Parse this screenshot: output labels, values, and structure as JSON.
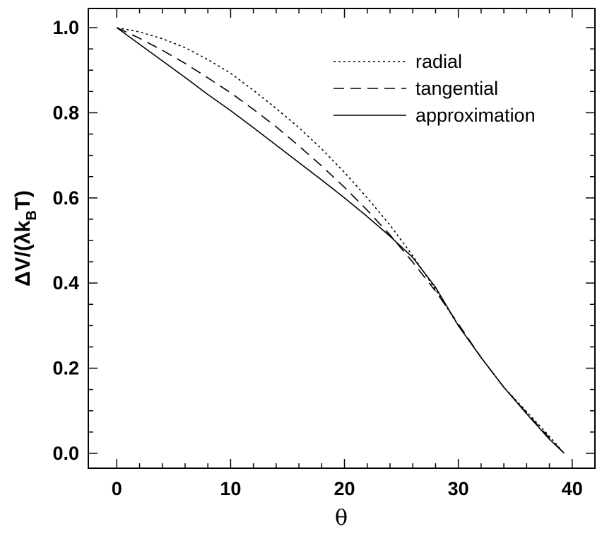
{
  "chart_data": {
    "type": "line",
    "title": "",
    "xlabel": "θ",
    "ylabel": "ΔV/(λk_BT)",
    "xlim": [
      -2.5,
      42
    ],
    "ylim": [
      -0.035,
      1.045
    ],
    "grid": false,
    "legend_position": "top-right",
    "x_ticks": {
      "major": [
        0,
        10,
        20,
        30,
        40
      ],
      "labels": [
        "0",
        "10",
        "20",
        "30",
        "40"
      ],
      "minor_step": 2
    },
    "y_ticks": {
      "major": [
        0.0,
        0.2,
        0.4,
        0.6,
        0.8,
        1.0
      ],
      "labels": [
        "0.0",
        "0.2",
        "0.4",
        "0.6",
        "0.8",
        "1.0"
      ],
      "minor_step": 0.05
    },
    "series": [
      {
        "name": "radial",
        "style": "dotted",
        "x": [
          0,
          2,
          4,
          6,
          8,
          10,
          12,
          14,
          16,
          18,
          20,
          22,
          24,
          26,
          28,
          30,
          32,
          34,
          36,
          38,
          39.3
        ],
        "y": [
          1.0,
          0.99,
          0.974,
          0.953,
          0.925,
          0.893,
          0.853,
          0.81,
          0.765,
          0.715,
          0.66,
          0.6,
          0.536,
          0.464,
          0.385,
          0.3,
          0.225,
          0.155,
          0.098,
          0.04,
          0.0
        ]
      },
      {
        "name": "tangential",
        "style": "dashed",
        "x": [
          0,
          2,
          4,
          6,
          8,
          10,
          12,
          14,
          16,
          18,
          20,
          22,
          24,
          26,
          28,
          30,
          32,
          34,
          36,
          38,
          39.3
        ],
        "y": [
          1.0,
          0.975,
          0.947,
          0.916,
          0.882,
          0.847,
          0.808,
          0.767,
          0.722,
          0.675,
          0.625,
          0.571,
          0.513,
          0.449,
          0.381,
          0.304,
          0.225,
          0.155,
          0.095,
          0.036,
          0.0
        ]
      },
      {
        "name": "approximation",
        "style": "solid",
        "x": [
          0,
          2,
          4,
          6,
          8,
          10,
          12,
          14,
          16,
          18,
          20,
          22,
          24,
          26,
          28,
          30,
          32,
          34,
          36,
          38,
          39.3
        ],
        "y": [
          1.0,
          0.961,
          0.922,
          0.883,
          0.843,
          0.805,
          0.765,
          0.724,
          0.683,
          0.642,
          0.6,
          0.556,
          0.51,
          0.46,
          0.39,
          0.3,
          0.225,
          0.155,
          0.093,
          0.033,
          0.0
        ]
      }
    ]
  }
}
